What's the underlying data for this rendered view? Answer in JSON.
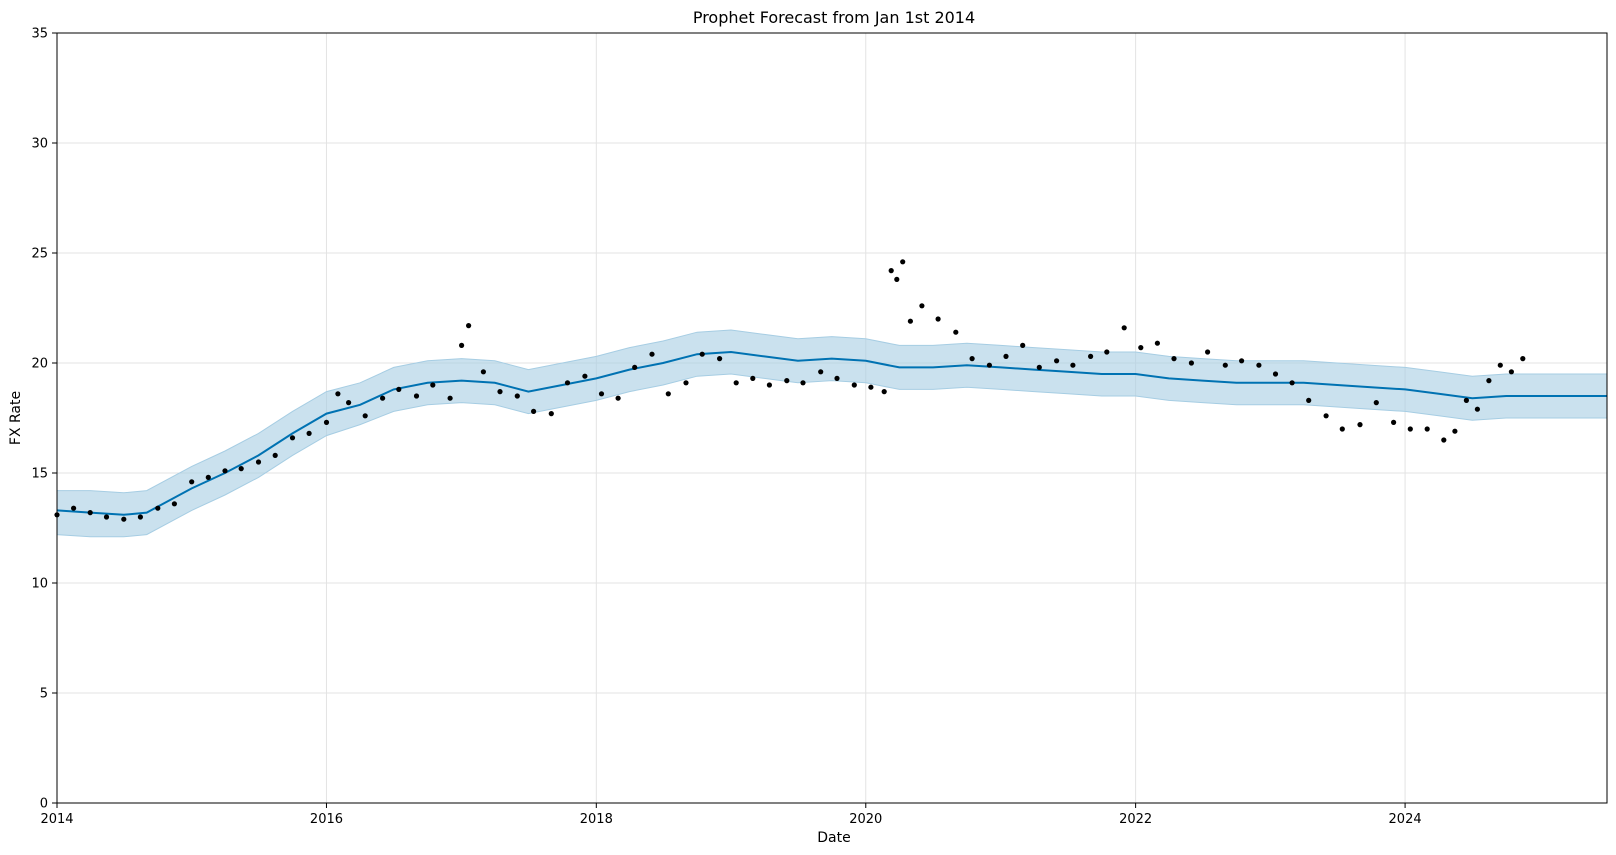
{
  "chart_data": {
    "type": "scatter",
    "title": "Prophet Forecast from Jan 1st 2014",
    "xlabel": "Date",
    "ylabel": "FX Rate",
    "xlim": [
      "2014-01-01",
      "2025-07-01"
    ],
    "ylim": [
      0,
      35
    ],
    "x_ticks": [
      {
        "value": "2014-01-01",
        "label": "2014"
      },
      {
        "value": "2016-01-01",
        "label": "2016"
      },
      {
        "value": "2018-01-01",
        "label": "2018"
      },
      {
        "value": "2020-01-01",
        "label": "2020"
      },
      {
        "value": "2022-01-01",
        "label": "2022"
      },
      {
        "value": "2024-01-01",
        "label": "2024"
      }
    ],
    "y_ticks": [
      0,
      5,
      10,
      15,
      20,
      25,
      30,
      35
    ],
    "grid": true,
    "colors": {
      "forecast": "#0072b2",
      "interval": "#a6cde3",
      "observed": "#000000",
      "grid": "#e3e3e3"
    },
    "series": [
      {
        "role": "forecast",
        "style": "line",
        "x": [
          "2014-01-01",
          "2014-04-01",
          "2014-07-01",
          "2014-09-01",
          "2015-01-01",
          "2015-04-01",
          "2015-07-01",
          "2015-10-01",
          "2016-01-01",
          "2016-04-01",
          "2016-07-01",
          "2016-10-01",
          "2017-01-01",
          "2017-04-01",
          "2017-07-01",
          "2017-10-01",
          "2018-01-01",
          "2018-04-01",
          "2018-07-01",
          "2018-10-01",
          "2019-01-01",
          "2019-04-01",
          "2019-07-01",
          "2019-10-01",
          "2020-01-01",
          "2020-04-01",
          "2020-07-01",
          "2020-10-01",
          "2021-01-01",
          "2021-04-01",
          "2021-07-01",
          "2021-10-01",
          "2022-01-01",
          "2022-04-01",
          "2022-07-01",
          "2022-10-01",
          "2023-01-01",
          "2023-04-01",
          "2023-07-01",
          "2023-10-01",
          "2024-01-01",
          "2024-04-01",
          "2024-07-01",
          "2024-10-01",
          "2025-01-01",
          "2025-04-01",
          "2025-07-01"
        ],
        "y": [
          13.3,
          13.2,
          13.1,
          13.2,
          14.3,
          15.0,
          15.8,
          16.8,
          17.7,
          18.1,
          18.8,
          19.1,
          19.2,
          19.1,
          18.7,
          19.0,
          19.3,
          19.7,
          20.0,
          20.4,
          20.5,
          20.3,
          20.1,
          20.2,
          20.1,
          19.8,
          19.8,
          19.9,
          19.8,
          19.7,
          19.6,
          19.5,
          19.5,
          19.3,
          19.2,
          19.1,
          19.1,
          19.1,
          19.0,
          18.9,
          18.8,
          18.6,
          18.4,
          18.5,
          18.5,
          18.5,
          18.5
        ]
      },
      {
        "role": "interval",
        "style": "band",
        "x": [
          "2014-01-01",
          "2014-04-01",
          "2014-07-01",
          "2014-09-01",
          "2015-01-01",
          "2015-04-01",
          "2015-07-01",
          "2015-10-01",
          "2016-01-01",
          "2016-04-01",
          "2016-07-01",
          "2016-10-01",
          "2017-01-01",
          "2017-04-01",
          "2017-07-01",
          "2017-10-01",
          "2018-01-01",
          "2018-04-01",
          "2018-07-01",
          "2018-10-01",
          "2019-01-01",
          "2019-04-01",
          "2019-07-01",
          "2019-10-01",
          "2020-01-01",
          "2020-04-01",
          "2020-07-01",
          "2020-10-01",
          "2021-01-01",
          "2021-04-01",
          "2021-07-01",
          "2021-10-01",
          "2022-01-01",
          "2022-04-01",
          "2022-07-01",
          "2022-10-01",
          "2023-01-01",
          "2023-04-01",
          "2023-07-01",
          "2023-10-01",
          "2024-01-01",
          "2024-04-01",
          "2024-07-01",
          "2024-10-01",
          "2025-01-01",
          "2025-04-01",
          "2025-07-01"
        ],
        "lower": [
          12.2,
          12.1,
          12.1,
          12.2,
          13.3,
          14.0,
          14.8,
          15.8,
          16.7,
          17.2,
          17.8,
          18.1,
          18.2,
          18.1,
          17.7,
          18.0,
          18.3,
          18.7,
          19.0,
          19.4,
          19.5,
          19.3,
          19.1,
          19.2,
          19.1,
          18.8,
          18.8,
          18.9,
          18.8,
          18.7,
          18.6,
          18.5,
          18.5,
          18.3,
          18.2,
          18.1,
          18.1,
          18.1,
          18.0,
          17.9,
          17.8,
          17.6,
          17.4,
          17.5,
          17.5,
          17.5,
          17.5
        ],
        "upper": [
          14.2,
          14.2,
          14.1,
          14.2,
          15.3,
          16.0,
          16.8,
          17.8,
          18.7,
          19.1,
          19.8,
          20.1,
          20.2,
          20.1,
          19.7,
          20.0,
          20.3,
          20.7,
          21.0,
          21.4,
          21.5,
          21.3,
          21.1,
          21.2,
          21.1,
          20.8,
          20.8,
          20.9,
          20.8,
          20.7,
          20.6,
          20.5,
          20.5,
          20.3,
          20.2,
          20.1,
          20.1,
          20.1,
          20.0,
          19.9,
          19.8,
          19.6,
          19.4,
          19.5,
          19.5,
          19.5,
          19.5
        ]
      },
      {
        "role": "observed",
        "style": "points",
        "x": [
          "2014-01-01",
          "2014-02-15",
          "2014-04-01",
          "2014-05-15",
          "2014-07-01",
          "2014-08-15",
          "2014-10-01",
          "2014-11-15",
          "2015-01-01",
          "2015-02-15",
          "2015-04-01",
          "2015-05-15",
          "2015-07-01",
          "2015-08-15",
          "2015-10-01",
          "2015-11-15",
          "2016-01-01",
          "2016-02-01",
          "2016-03-01",
          "2016-04-15",
          "2016-06-01",
          "2016-07-15",
          "2016-09-01",
          "2016-10-15",
          "2016-12-01",
          "2017-01-01",
          "2017-01-20",
          "2017-03-01",
          "2017-04-15",
          "2017-06-01",
          "2017-07-15",
          "2017-09-01",
          "2017-10-15",
          "2017-12-01",
          "2018-01-15",
          "2018-03-01",
          "2018-04-15",
          "2018-06-01",
          "2018-07-15",
          "2018-09-01",
          "2018-10-15",
          "2018-12-01",
          "2019-01-15",
          "2019-03-01",
          "2019-04-15",
          "2019-06-01",
          "2019-07-15",
          "2019-09-01",
          "2019-10-15",
          "2019-12-01",
          "2020-01-15",
          "2020-02-20",
          "2020-03-10",
          "2020-03-25",
          "2020-04-10",
          "2020-05-01",
          "2020-06-01",
          "2020-07-15",
          "2020-09-01",
          "2020-10-15",
          "2020-12-01",
          "2021-01-15",
          "2021-03-01",
          "2021-04-15",
          "2021-06-01",
          "2021-07-15",
          "2021-09-01",
          "2021-10-15",
          "2021-12-01",
          "2022-01-15",
          "2022-03-01",
          "2022-04-15",
          "2022-06-01",
          "2022-07-15",
          "2022-09-01",
          "2022-10-15",
          "2022-12-01",
          "2023-01-15",
          "2023-03-01",
          "2023-04-15",
          "2023-06-01",
          "2023-07-15",
          "2023-09-01",
          "2023-10-15",
          "2023-12-01",
          "2024-01-15",
          "2024-03-01",
          "2024-04-15",
          "2024-05-15",
          "2024-06-15",
          "2024-07-15",
          "2024-08-15",
          "2024-09-15",
          "2024-10-15",
          "2024-11-15"
        ],
        "y": [
          13.1,
          13.4,
          13.2,
          13.0,
          12.9,
          13.0,
          13.4,
          13.6,
          14.6,
          14.8,
          15.1,
          15.2,
          15.5,
          15.8,
          16.6,
          16.8,
          17.3,
          18.6,
          18.2,
          17.6,
          18.4,
          18.8,
          18.5,
          19.0,
          18.4,
          20.8,
          21.7,
          19.6,
          18.7,
          18.5,
          17.8,
          17.7,
          19.1,
          19.4,
          18.6,
          18.4,
          19.8,
          20.4,
          18.6,
          19.1,
          20.4,
          20.2,
          19.1,
          19.3,
          19.0,
          19.2,
          19.1,
          19.6,
          19.3,
          19.0,
          18.9,
          18.7,
          24.2,
          23.8,
          24.6,
          21.9,
          22.6,
          22.0,
          21.4,
          20.2,
          19.9,
          20.3,
          20.8,
          19.8,
          20.1,
          19.9,
          20.3,
          20.5,
          21.6,
          20.7,
          20.9,
          20.2,
          20.0,
          20.5,
          19.9,
          20.1,
          19.9,
          19.5,
          19.1,
          18.3,
          17.6,
          17.0,
          17.2,
          18.2,
          17.3,
          17.0,
          17.0,
          16.5,
          16.9,
          18.3,
          17.9,
          19.2,
          19.9,
          19.6,
          20.2
        ]
      }
    ]
  }
}
